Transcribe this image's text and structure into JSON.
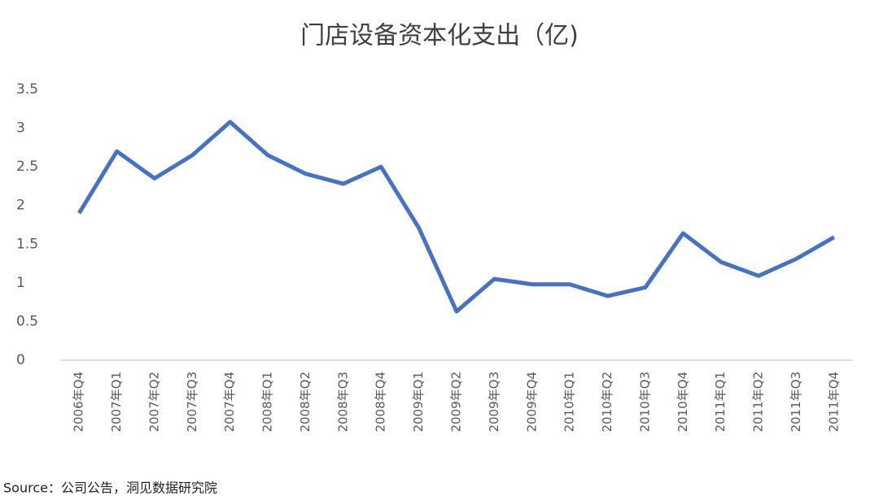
{
  "chart_data": {
    "type": "line",
    "title": "门店设备资本化支出（亿)",
    "categories": [
      "2006年Q4",
      "2007年Q1",
      "2007年Q2",
      "2007年Q3",
      "2007年Q4",
      "2008年Q1",
      "2008年Q2",
      "2008年Q3",
      "2008年Q4",
      "2009年Q1",
      "2009年Q2",
      "2009年Q3",
      "2009年Q4",
      "2010年Q1",
      "2010年Q2",
      "2010年Q3",
      "2010年Q4",
      "2011年Q1",
      "2011年Q2",
      "2011年Q3",
      "2011年Q4"
    ],
    "values": [
      1.9,
      2.7,
      2.35,
      2.65,
      3.08,
      2.65,
      2.41,
      2.28,
      2.5,
      1.71,
      0.63,
      1.05,
      0.98,
      0.98,
      0.83,
      0.94,
      1.64,
      1.27,
      1.09,
      1.31,
      1.59
    ],
    "color": "#4472c4",
    "ylim": [
      0,
      3.5
    ],
    "yticks": [
      0,
      0.5,
      1,
      1.5,
      2,
      2.5,
      3,
      3.5
    ],
    "grid": false,
    "source": "Source：公司公告，洞见数据研究院"
  }
}
